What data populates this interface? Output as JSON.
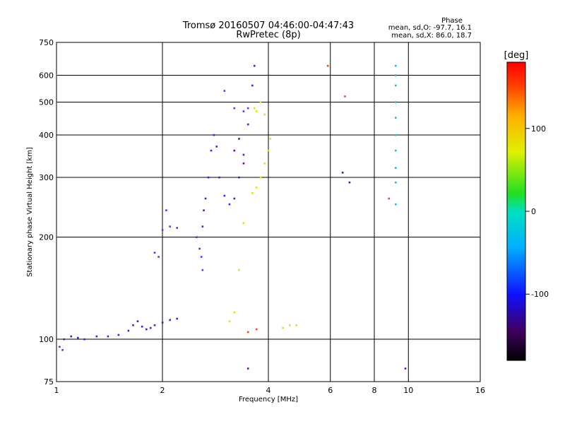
{
  "chart_data": {
    "type": "scatter",
    "title": "Tromsø 20160507 04:46:00-04:47:43",
    "subtitle": "RwPretec (8p)",
    "xlabel": "Frequency [MHz]",
    "ylabel": "Stationary phase Virtual Height [km]",
    "x_scale": "log",
    "y_scale": "log",
    "xlim": [
      1,
      16
    ],
    "ylim": [
      75,
      750
    ],
    "x_ticks": [
      1,
      2,
      4,
      6,
      8,
      10,
      16
    ],
    "y_ticks": [
      75,
      100,
      200,
      300,
      400,
      500,
      600,
      750
    ],
    "grid": true,
    "legend_position": "top-right",
    "phase_info": {
      "header": "Phase",
      "line_o": "mean, sd,O:  -97.7, 16.1",
      "line_x": "mean, sd,X:  86.0, 18.7"
    },
    "colorbar": {
      "label": "[deg]",
      "range": [
        -180,
        180
      ],
      "ticks": [
        -100,
        0,
        100
      ]
    },
    "series": [
      {
        "name": "",
        "phase": -100,
        "color": "#2a2ad6",
        "points": [
          [
            1.05,
            100
          ],
          [
            1.1,
            102
          ],
          [
            1.15,
            101
          ],
          [
            1.2,
            100
          ],
          [
            1.3,
            102
          ],
          [
            1.4,
            102
          ],
          [
            1.5,
            103
          ],
          [
            1.6,
            106
          ],
          [
            1.65,
            110
          ],
          [
            1.7,
            113
          ],
          [
            1.75,
            109
          ],
          [
            1.8,
            107
          ],
          [
            1.85,
            108
          ],
          [
            1.9,
            110
          ],
          [
            2.0,
            112
          ],
          [
            2.1,
            114
          ],
          [
            2.2,
            115
          ],
          [
            2.6,
            215
          ],
          [
            2.62,
            240
          ],
          [
            2.65,
            260
          ],
          [
            2.7,
            300
          ],
          [
            2.75,
            360
          ],
          [
            2.8,
            400
          ],
          [
            2.85,
            370
          ],
          [
            2.9,
            300
          ],
          [
            3.0,
            265
          ],
          [
            3.1,
            250
          ],
          [
            3.2,
            260
          ],
          [
            3.3,
            300
          ],
          [
            3.4,
            350
          ],
          [
            3.5,
            430
          ],
          [
            3.6,
            560
          ],
          [
            3.65,
            640
          ]
        ]
      },
      {
        "name": "",
        "phase": -110,
        "color": "#4040e8",
        "points": [
          [
            1.02,
            95
          ],
          [
            1.04,
            93
          ],
          [
            1.9,
            180
          ],
          [
            1.95,
            175
          ],
          [
            2.0,
            210
          ],
          [
            2.05,
            240
          ],
          [
            2.1,
            215
          ],
          [
            2.2,
            213
          ],
          [
            2.5,
            200
          ],
          [
            2.55,
            185
          ],
          [
            2.58,
            175
          ],
          [
            2.6,
            160
          ],
          [
            3.0,
            540
          ],
          [
            3.2,
            480
          ],
          [
            3.4,
            470
          ],
          [
            3.5,
            480
          ]
        ]
      },
      {
        "name": "",
        "phase": 100,
        "color": "#d8e800",
        "points": [
          [
            3.6,
            270
          ],
          [
            3.7,
            280
          ],
          [
            3.8,
            300
          ],
          [
            3.9,
            330
          ],
          [
            4.0,
            360
          ],
          [
            4.05,
            390
          ],
          [
            3.65,
            480
          ],
          [
            3.7,
            470
          ],
          [
            3.8,
            500
          ],
          [
            3.9,
            460
          ],
          [
            3.4,
            220
          ],
          [
            3.3,
            160
          ],
          [
            3.2,
            120
          ],
          [
            3.1,
            113
          ],
          [
            4.8,
            110
          ],
          [
            4.6,
            110
          ],
          [
            4.4,
            108
          ]
        ]
      },
      {
        "name": "",
        "phase": 20,
        "color": "#10c0e0",
        "points": [
          [
            9.2,
            640
          ],
          [
            9.2,
            600
          ],
          [
            9.2,
            560
          ],
          [
            9.2,
            500
          ],
          [
            9.2,
            450
          ],
          [
            9.2,
            400
          ],
          [
            9.2,
            360
          ],
          [
            9.2,
            320
          ],
          [
            9.2,
            290
          ],
          [
            9.2,
            250
          ]
        ]
      },
      {
        "name": "",
        "phase": -150,
        "color": "#6a0aa0",
        "points": [
          [
            3.2,
            360
          ],
          [
            3.3,
            390
          ],
          [
            3.4,
            330
          ],
          [
            3.5,
            82
          ],
          [
            6.5,
            310
          ],
          [
            6.8,
            290
          ],
          [
            9.8,
            82
          ]
        ]
      },
      {
        "name": "",
        "phase": 160,
        "color": "#ff4020",
        "points": [
          [
            5.9,
            640
          ],
          [
            6.6,
            520
          ],
          [
            8.8,
            260
          ],
          [
            3.5,
            105
          ],
          [
            3.7,
            107
          ]
        ]
      }
    ]
  }
}
